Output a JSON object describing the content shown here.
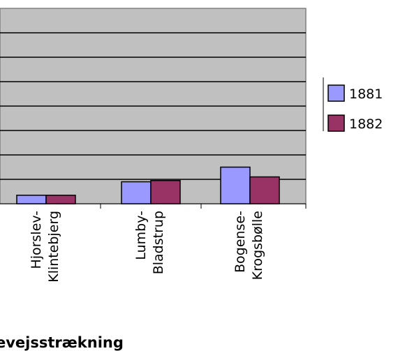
{
  "chart_data": {
    "type": "bar",
    "categories": [
      "Hjorslev-\nKlintebjerg",
      "Lumby-\nBladstrup",
      "Bogense-\nKrogsbølle"
    ],
    "series": [
      {
        "name": "1881",
        "values": [
          0.35,
          0.9,
          1.5
        ],
        "color": "#9999ff"
      },
      {
        "name": "1882",
        "values": [
          0.35,
          0.95,
          1.1
        ],
        "color": "#993366"
      }
    ],
    "xlabel": "evejsstrækning",
    "ylabel": "",
    "ylim": [
      0,
      8
    ],
    "grid": true,
    "plot_background": "#c0c0c0",
    "legend": "right"
  }
}
